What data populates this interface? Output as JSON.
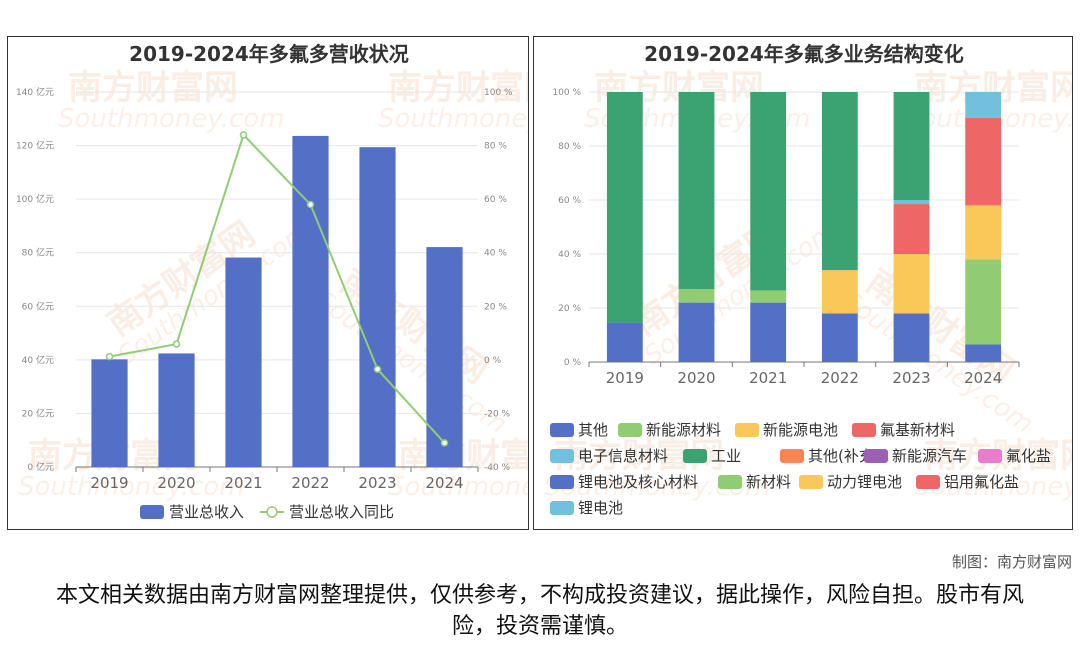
{
  "credit": "制图：南方财富网",
  "disclaimer": "本文相关数据由南方财富网整理提供，仅供参考，不构成投资建议，据此操作，风险自担。股市有风险，投资需谨慎。",
  "watermark": {
    "cn": "南方财富网",
    "en": "Southmoney.com"
  },
  "chart_data": [
    {
      "type": "bar",
      "title": "2019-2024年多氟多营收状况",
      "categories": [
        "2019",
        "2020",
        "2021",
        "2022",
        "2023",
        "2024"
      ],
      "ylim": [
        0,
        140
      ],
      "yticks": [
        "0 亿元",
        "20 亿元",
        "40 亿元",
        "60 亿元",
        "80 亿元",
        "100 亿元",
        "120 亿元",
        "140 亿元"
      ],
      "y2lim": [
        -40,
        100
      ],
      "y2ticks": [
        "-40 %",
        "-20 %",
        "0 %",
        "20 %",
        "40 %",
        "60 %",
        "80 %",
        "100 %"
      ],
      "series": [
        {
          "name": "营业总收入",
          "type": "bar",
          "axis": "left",
          "color": "#5470c6",
          "values": [
            40.2,
            42.4,
            78.2,
            123.6,
            119.4,
            82.1
          ]
        },
        {
          "name": "营业总收入同比",
          "type": "line",
          "axis": "right",
          "color": "#91cc75",
          "values": [
            1.2,
            5.9,
            84.0,
            58.0,
            -3.5,
            -31.0
          ]
        }
      ],
      "legend": "bottom",
      "grid": true
    },
    {
      "type": "bar",
      "stacked": true,
      "title": "2019-2024年多氟多业务结构变化",
      "categories": [
        "2019",
        "2020",
        "2021",
        "2022",
        "2023",
        "2024"
      ],
      "ylim": [
        0,
        100
      ],
      "yticks": [
        "0 %",
        "20 %",
        "40 %",
        "60 %",
        "80 %",
        "100 %"
      ],
      "series": [
        {
          "name": "其他",
          "color": "#5470c6",
          "values": [
            14.6,
            22.0,
            22.0,
            18.0,
            18.0,
            0
          ]
        },
        {
          "name": "新能源材料",
          "color": "#91cc75",
          "values": [
            0,
            5.0,
            4.5,
            0,
            0,
            0
          ]
        },
        {
          "name": "新能源电池",
          "color": "#fac858",
          "values": [
            0,
            0,
            0,
            16.0,
            22.0,
            0
          ]
        },
        {
          "name": "氟基新材料",
          "color": "#ee6666",
          "values": [
            0,
            0,
            0,
            0,
            18.5,
            0
          ]
        },
        {
          "name": "电子信息材料",
          "color": "#73c0de",
          "values": [
            0,
            0,
            0,
            0,
            1.5,
            0
          ]
        },
        {
          "name": "工业",
          "color": "#3ba272",
          "values": [
            85.4,
            73.0,
            73.5,
            66.0,
            40.0,
            0
          ]
        },
        {
          "name": "其他(补充)",
          "color": "#fc8452",
          "values": [
            0,
            0,
            0,
            0,
            0,
            0
          ]
        },
        {
          "name": "新能源汽车",
          "color": "#9a60b4",
          "values": [
            0,
            0,
            0,
            0,
            0,
            0
          ]
        },
        {
          "name": "氟化盐",
          "color": "#ea7ccc",
          "values": [
            0,
            0,
            0,
            0,
            0,
            0
          ]
        },
        {
          "name": "锂电池及核心材料",
          "color": "#5470c6",
          "values": [
            0,
            0,
            0,
            0,
            0,
            6.5
          ]
        },
        {
          "name": "新材料",
          "color": "#91cc75",
          "values": [
            0,
            0,
            0,
            0,
            0,
            31.5
          ]
        },
        {
          "name": "动力锂电池",
          "color": "#fac858",
          "values": [
            0,
            0,
            0,
            0,
            0,
            20.0
          ]
        },
        {
          "name": "铝用氟化盐",
          "color": "#ee6666",
          "values": [
            0,
            0,
            0,
            0,
            0,
            32.5
          ]
        },
        {
          "name": "锂电池",
          "color": "#73c0de",
          "values": [
            0,
            0,
            0,
            0,
            0,
            9.5
          ]
        }
      ],
      "legend": "bottom",
      "grid": true
    }
  ]
}
